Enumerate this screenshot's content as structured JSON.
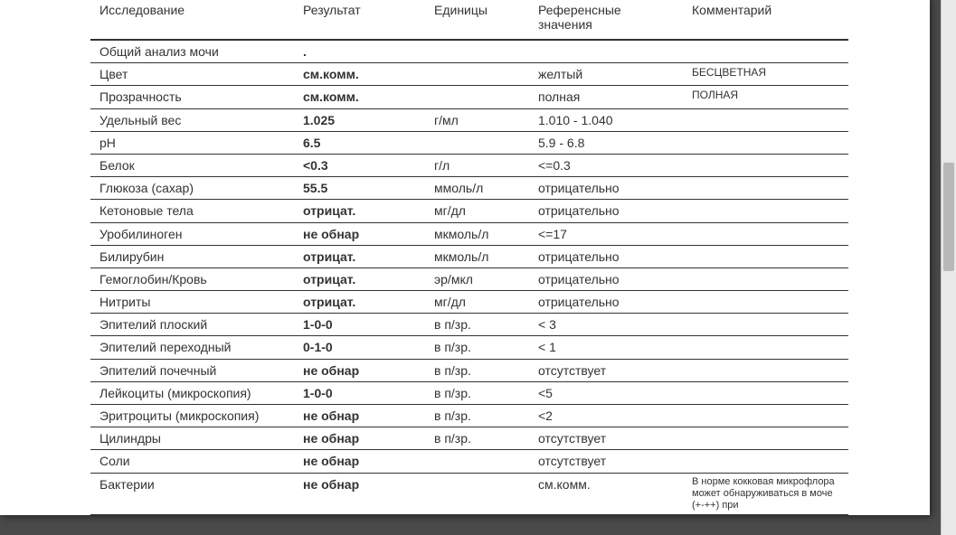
{
  "headers": {
    "test": "Исследование",
    "result": "Результат",
    "units": "Единицы",
    "reference": "Референсные значения",
    "comment": "Комментарий"
  },
  "rows": [
    {
      "test": "Общий анализ мочи",
      "result": ".",
      "units": "",
      "reference": "",
      "comment": ""
    },
    {
      "test": "Цвет",
      "result": "см.комм.",
      "units": "",
      "reference": "желтый",
      "comment": "БЕСЦВЕТНАЯ"
    },
    {
      "test": "Прозрачность",
      "result": "см.комм.",
      "units": "",
      "reference": "полная",
      "comment": "ПОЛНАЯ"
    },
    {
      "test": "Удельный вес",
      "result": "1.025",
      "units": "г/мл",
      "reference": "1.010 - 1.040",
      "comment": ""
    },
    {
      "test": "pH",
      "result": "6.5",
      "units": "",
      "reference": "5.9 - 6.8",
      "comment": ""
    },
    {
      "test": "Белок",
      "result": "<0.3",
      "units": "г/л",
      "reference": "<=0.3",
      "comment": ""
    },
    {
      "test": "Глюкоза (сахар)",
      "result": "55.5",
      "units": "ммоль/л",
      "reference": "отрицательно",
      "comment": ""
    },
    {
      "test": "Кетоновые тела",
      "result": "отрицат.",
      "units": "мг/дл",
      "reference": "отрицательно",
      "comment": ""
    },
    {
      "test": "Уробилиноген",
      "result": "не обнар",
      "units": "мкмоль/л",
      "reference": "<=17",
      "comment": ""
    },
    {
      "test": "Билирубин",
      "result": "отрицат.",
      "units": "мкмоль/л",
      "reference": "отрицательно",
      "comment": ""
    },
    {
      "test": "Гемоглобин/Кровь",
      "result": "отрицат.",
      "units": "эр/мкл",
      "reference": "отрицательно",
      "comment": ""
    },
    {
      "test": "Нитриты",
      "result": "отрицат.",
      "units": "мг/дл",
      "reference": "отрицательно",
      "comment": ""
    },
    {
      "test": "Эпителий плоский",
      "result": "1-0-0",
      "units": "в п/зр.",
      "reference": "< 3",
      "comment": ""
    },
    {
      "test": "Эпителий переходный",
      "result": "0-1-0",
      "units": "в п/зр.",
      "reference": "< 1",
      "comment": ""
    },
    {
      "test": "Эпителий почечный",
      "result": "не обнар",
      "units": "в п/зр.",
      "reference": "отсутствует",
      "comment": ""
    },
    {
      "test": "Лейкоциты (микроскопия)",
      "result": "1-0-0",
      "units": "в п/зр.",
      "reference": "<5",
      "comment": ""
    },
    {
      "test": "Эритроциты (микроскопия)",
      "result": "не обнар",
      "units": "в п/зр.",
      "reference": "<2",
      "comment": ""
    },
    {
      "test": "Цилиндры",
      "result": "не обнар",
      "units": "в п/зр.",
      "reference": "отсутствует",
      "comment": ""
    },
    {
      "test": "Соли",
      "result": "не обнар",
      "units": "",
      "reference": "отсутствует",
      "comment": ""
    },
    {
      "test": "Бактерии",
      "result": "не обнар",
      "units": "",
      "reference": "см.комм.",
      "comment": "В норме кокковая микрофлора может обнаруживаться в моче (+-++) при",
      "smallComment": true
    }
  ]
}
